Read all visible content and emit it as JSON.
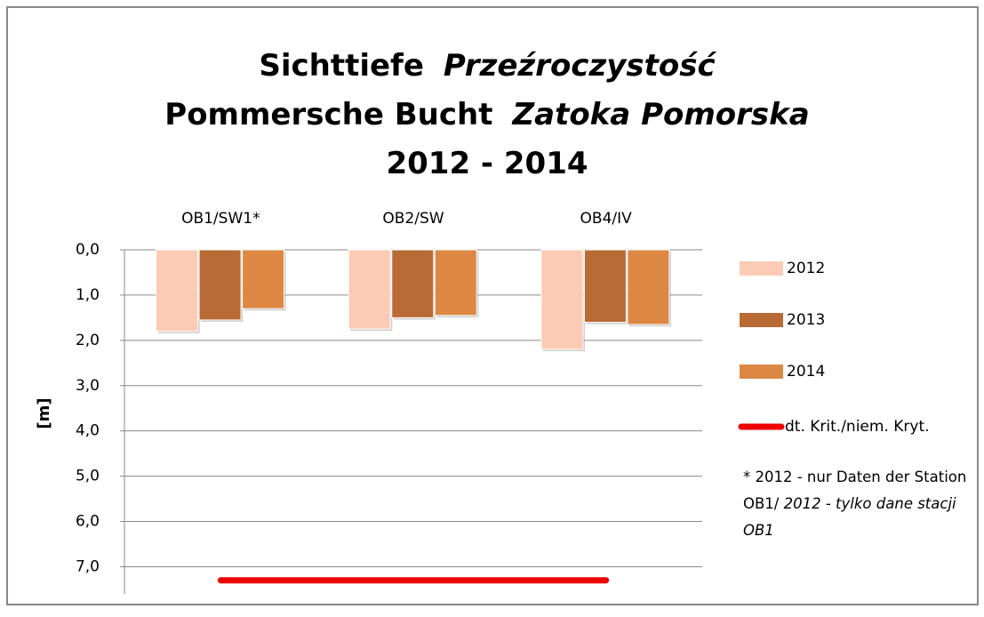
{
  "chart_data": {
    "type": "bar",
    "title": [
      [
        {
          "text": "Sichttiefe",
          "italic": false
        },
        {
          "text": "Przeźroczystość",
          "italic": true
        }
      ],
      [
        {
          "text": "Pommersche Bucht",
          "italic": false
        },
        {
          "text": "Zatoka Pomorska",
          "italic": true
        }
      ],
      [
        {
          "text": "2012 - 2014",
          "italic": false
        }
      ]
    ],
    "ylabel": "[m]",
    "categories": [
      "OB1/SW1*",
      "OB2/SW",
      "OB4/IV"
    ],
    "series": [
      {
        "name": "2012",
        "color": "#fbcbb5",
        "values": [
          1.8,
          1.75,
          2.2
        ]
      },
      {
        "name": "2013",
        "color": "#b96b35",
        "values": [
          1.55,
          1.5,
          1.6
        ]
      },
      {
        "name": "2014",
        "color": "#dc8844",
        "values": [
          1.3,
          1.45,
          1.65
        ]
      }
    ],
    "reference": {
      "name": "dt. Krit./niem. Kryt.",
      "value": 7.3,
      "color": "#ee0000"
    },
    "ylim": [
      0,
      7.6
    ],
    "y_inverted": true,
    "yticks": [
      {
        "value": 0,
        "label": "0,0"
      },
      {
        "value": 1,
        "label": "1,0"
      },
      {
        "value": 2,
        "label": "2,0"
      },
      {
        "value": 3,
        "label": "3,0"
      },
      {
        "value": 4,
        "label": "4,0"
      },
      {
        "value": 5,
        "label": "5,0"
      },
      {
        "value": 6,
        "label": "6,0"
      },
      {
        "value": 7,
        "label": "7,0"
      }
    ],
    "grid": true,
    "legend": "right",
    "footnote": {
      "text": "* 2012 - nur Daten der Station OB1/",
      "italic_text": "2012 - tylko dane stacji OB1"
    }
  }
}
